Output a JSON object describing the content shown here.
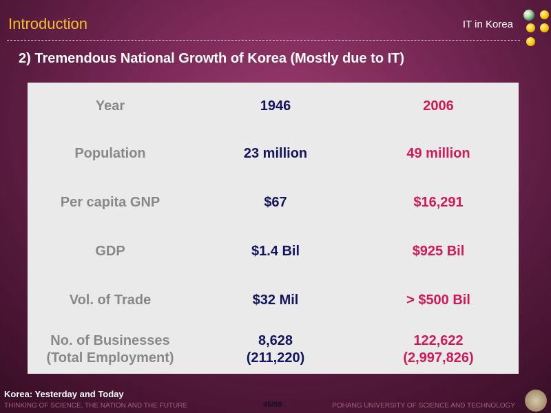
{
  "header": {
    "title": "Introduction",
    "section": "IT in Korea"
  },
  "subtitle": "2) Tremendous National Growth of Korea (Mostly due to IT)",
  "table": {
    "header": {
      "label": "Year",
      "old": "1946",
      "new": "2006"
    },
    "rows": [
      {
        "label": "Population",
        "old": "23 million",
        "new": "49 million"
      },
      {
        "label": "Per capita GNP",
        "old": "$67",
        "new": "$16,291"
      },
      {
        "label": "GDP",
        "old": "$1.4 Bil",
        "new": "$925 Bil"
      },
      {
        "label": "Vol. of Trade",
        "old": "$32 Mil",
        "new": "> $500 Bil"
      },
      {
        "label": "No. of Businesses",
        "label2": "(Total Employment)",
        "old": "8,628",
        "old2": "(211,220)",
        "new": "122,622",
        "new2": "(2,997,826)"
      }
    ]
  },
  "footer": {
    "presentation": "Korea: Yesterday and Today",
    "tagline": "THINKING OF SCIENCE, THE NATION AND THE FUTURE",
    "page": "45/59",
    "university": "POHANG UNIVERSITY OF SCIENCE AND TECHNOLOGY"
  },
  "colors": {
    "title": "#f6bf2a",
    "label_text": "#888888",
    "year_1946": "#13135f",
    "year_2006": "#d11a55",
    "panel": "#eaeaea"
  },
  "icons": [
    "globe-icon",
    "yellow-dot-icon",
    "university-seal-icon"
  ]
}
